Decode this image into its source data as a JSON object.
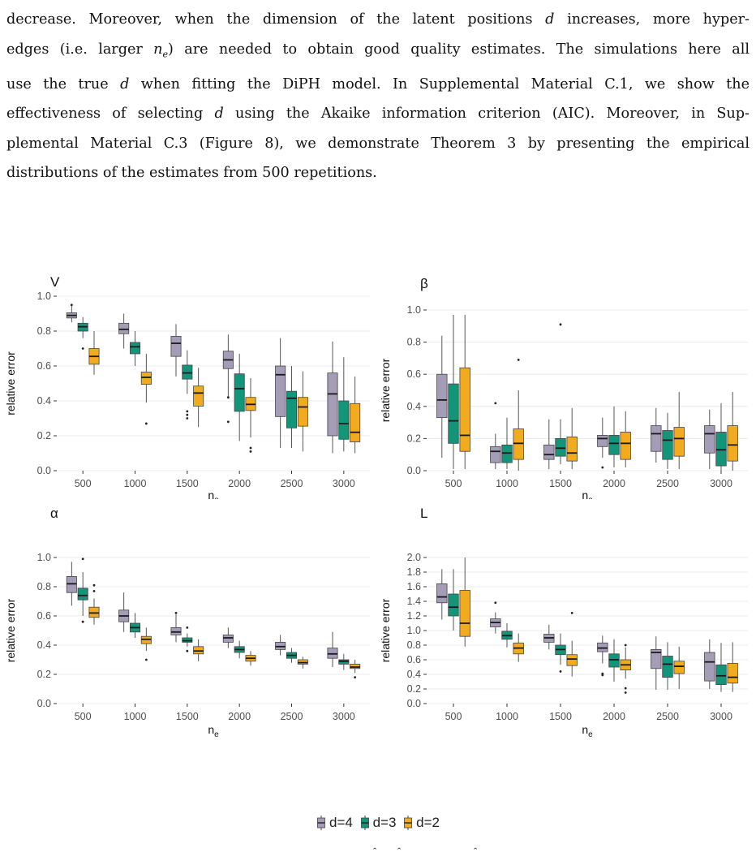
{
  "paragraph": {
    "lines": [
      "decrease. Moreover, when the dimension of the latent positions d increases, more hyper-",
      "edges (i.e. larger n_e) are needed to obtain good quality estimates. The simulations here all",
      "use the true d when fitting the DiPH model. In Supplemental Material C.1, we show the",
      "effectiveness of selecting d using the Akaike information criterion (AIC). Moreover, in Sup-",
      "plemental Material C.3 (Figure 8), we demonstrate Theorem 3 by presenting the empirical",
      "distributions of the estimates from 500 repetitions."
    ]
  },
  "legend": {
    "items": [
      {
        "label": "d=4",
        "color": "#a59cb8"
      },
      {
        "label": "d=3",
        "color": "#13957a"
      },
      {
        "label": "d=2",
        "color": "#f2aa1f"
      }
    ]
  },
  "chart_data": [
    {
      "type": "box",
      "title": "V",
      "xlabel": "n_e",
      "ylabel": "relative error",
      "categories": [
        "500",
        "1000",
        "1500",
        "2000",
        "2500",
        "3000"
      ],
      "ylim": [
        0,
        1.0
      ],
      "yticks": [
        "0.0",
        "0.2",
        "0.4",
        "0.6",
        "0.8",
        "1.0"
      ],
      "ytick_values": [
        0,
        0.2,
        0.4,
        0.6,
        0.8,
        1.0
      ],
      "series": [
        {
          "name": "d=4",
          "boxes": [
            [
              0.85,
              0.875,
              0.89,
              0.905,
              0.95
            ],
            [
              0.7,
              0.785,
              0.81,
              0.845,
              0.9
            ],
            [
              0.54,
              0.655,
              0.73,
              0.77,
              0.84
            ],
            [
              0.42,
              0.585,
              0.635,
              0.685,
              0.78
            ],
            [
              0.13,
              0.31,
              0.55,
              0.6,
              0.76
            ],
            [
              0.1,
              0.2,
              0.44,
              0.56,
              0.74
            ]
          ],
          "outliers": [
            [
              0.95
            ],
            [],
            [],
            [
              0.28,
              0.42
            ],
            [],
            []
          ]
        },
        {
          "name": "d=3",
          "boxes": [
            [
              0.76,
              0.8,
              0.825,
              0.845,
              0.88
            ],
            [
              0.6,
              0.67,
              0.71,
              0.735,
              0.8
            ],
            [
              0.44,
              0.525,
              0.56,
              0.605,
              0.69
            ],
            [
              0.17,
              0.34,
              0.47,
              0.555,
              0.67
            ],
            [
              0.13,
              0.245,
              0.415,
              0.455,
              0.6
            ],
            [
              0.11,
              0.18,
              0.27,
              0.4,
              0.65
            ]
          ],
          "outliers": [
            [
              0.7
            ],
            [],
            [
              0.3,
              0.32,
              0.34
            ],
            [],
            [],
            []
          ]
        },
        {
          "name": "d=2",
          "boxes": [
            [
              0.55,
              0.61,
              0.655,
              0.7,
              0.8
            ],
            [
              0.39,
              0.495,
              0.535,
              0.565,
              0.67
            ],
            [
              0.25,
              0.37,
              0.445,
              0.485,
              0.59
            ],
            [
              0.19,
              0.345,
              0.38,
              0.42,
              0.53
            ],
            [
              0.11,
              0.255,
              0.365,
              0.42,
              0.57
            ],
            [
              0.1,
              0.165,
              0.22,
              0.385,
              0.54
            ]
          ],
          "outliers": [
            [],
            [
              0.27
            ],
            [],
            [
              0.11,
              0.13
            ],
            [],
            []
          ]
        }
      ]
    },
    {
      "type": "box",
      "title": "β",
      "xlabel": "n_e",
      "ylabel": "relative error",
      "categories": [
        "500",
        "1000",
        "1500",
        "2000",
        "2500",
        "3000"
      ],
      "ylim": [
        0,
        1.0
      ],
      "yticks": [
        "0.0",
        "0.2",
        "0.4",
        "0.6",
        "0.8",
        "1.0"
      ],
      "ytick_values": [
        0,
        0.2,
        0.4,
        0.6,
        0.8,
        1.0
      ],
      "series": [
        {
          "name": "d=4",
          "boxes": [
            [
              0.08,
              0.33,
              0.44,
              0.6,
              0.84
            ],
            [
              0.01,
              0.05,
              0.12,
              0.15,
              0.23
            ],
            [
              0.01,
              0.07,
              0.1,
              0.16,
              0.32
            ],
            [
              0.08,
              0.15,
              0.2,
              0.22,
              0.33
            ],
            [
              0.05,
              0.12,
              0.23,
              0.28,
              0.39
            ],
            [
              0.01,
              0.11,
              0.23,
              0.28,
              0.38
            ]
          ],
          "outliers": [
            [],
            [
              0.42
            ],
            [],
            [
              0.02
            ],
            [],
            []
          ]
        },
        {
          "name": "d=3",
          "boxes": [
            [
              0.01,
              0.17,
              0.31,
              0.54,
              0.97
            ],
            [
              0.01,
              0.05,
              0.11,
              0.16,
              0.33
            ],
            [
              0.04,
              0.09,
              0.14,
              0.2,
              0.32
            ],
            [
              0.02,
              0.1,
              0.17,
              0.22,
              0.4
            ],
            [
              0.01,
              0.07,
              0.19,
              0.25,
              0.36
            ],
            [
              0.0,
              0.03,
              0.13,
              0.24,
              0.42
            ]
          ],
          "outliers": [
            [],
            [],
            [
              0.91
            ],
            [],
            [],
            []
          ]
        },
        {
          "name": "d=2",
          "boxes": [
            [
              0.01,
              0.12,
              0.22,
              0.64,
              0.97
            ],
            [
              0.0,
              0.07,
              0.17,
              0.26,
              0.5
            ],
            [
              0.01,
              0.06,
              0.11,
              0.21,
              0.39
            ],
            [
              0.02,
              0.07,
              0.17,
              0.24,
              0.37
            ],
            [
              0.01,
              0.09,
              0.2,
              0.27,
              0.49
            ],
            [
              0.0,
              0.06,
              0.16,
              0.28,
              0.49
            ]
          ],
          "outliers": [
            [],
            [
              0.69
            ],
            [],
            [],
            [],
            []
          ]
        }
      ]
    },
    {
      "type": "box",
      "title": "α",
      "xlabel": "n_e",
      "ylabel": "relative error",
      "categories": [
        "500",
        "1000",
        "1500",
        "2000",
        "2500",
        "3000"
      ],
      "ylim": [
        0,
        1.0
      ],
      "yticks": [
        "0.0",
        "0.2",
        "0.4",
        "0.6",
        "0.8",
        "1.0"
      ],
      "ytick_values": [
        0,
        0.2,
        0.4,
        0.6,
        0.8,
        1.0
      ],
      "series": [
        {
          "name": "d=4",
          "boxes": [
            [
              0.67,
              0.76,
              0.82,
              0.87,
              0.97
            ],
            [
              0.49,
              0.56,
              0.6,
              0.64,
              0.76
            ],
            [
              0.42,
              0.47,
              0.49,
              0.52,
              0.61
            ],
            [
              0.38,
              0.42,
              0.45,
              0.47,
              0.52
            ],
            [
              0.33,
              0.37,
              0.39,
              0.42,
              0.47
            ],
            [
              0.25,
              0.31,
              0.34,
              0.38,
              0.49
            ]
          ],
          "outliers": [
            [],
            [],
            [
              0.62
            ],
            [],
            [],
            []
          ]
        },
        {
          "name": "d=3",
          "boxes": [
            [
              0.6,
              0.71,
              0.74,
              0.79,
              0.9
            ],
            [
              0.45,
              0.49,
              0.52,
              0.55,
              0.62
            ],
            [
              0.39,
              0.42,
              0.43,
              0.45,
              0.48
            ],
            [
              0.31,
              0.35,
              0.37,
              0.39,
              0.43
            ],
            [
              0.28,
              0.31,
              0.33,
              0.35,
              0.38
            ],
            [
              0.23,
              0.27,
              0.29,
              0.3,
              0.34
            ]
          ],
          "outliers": [
            [
              0.56,
              0.99
            ],
            [],
            [
              0.36,
              0.52
            ],
            [],
            [],
            []
          ]
        },
        {
          "name": "d=2",
          "boxes": [
            [
              0.54,
              0.59,
              0.62,
              0.66,
              0.72
            ],
            [
              0.36,
              0.41,
              0.44,
              0.46,
              0.52
            ],
            [
              0.29,
              0.34,
              0.36,
              0.39,
              0.44
            ],
            [
              0.26,
              0.29,
              0.31,
              0.33,
              0.36
            ],
            [
              0.24,
              0.27,
              0.28,
              0.3,
              0.32
            ],
            [
              0.21,
              0.24,
              0.25,
              0.27,
              0.3
            ]
          ],
          "outliers": [
            [
              0.77,
              0.81
            ],
            [
              0.3
            ],
            [],
            [],
            [],
            [
              0.18
            ]
          ]
        }
      ]
    },
    {
      "type": "box",
      "title": "L",
      "xlabel": "n_e",
      "ylabel": "relative error",
      "categories": [
        "500",
        "1000",
        "1500",
        "2000",
        "2500",
        "3000"
      ],
      "ylim": [
        0,
        2.0
      ],
      "yticks": [
        "0.0",
        "0.2",
        "0.4",
        "0.6",
        "0.8",
        "1.0",
        "1.2",
        "1.4",
        "1.6",
        "1.8",
        "2.0"
      ],
      "ytick_values": [
        0,
        0.2,
        0.4,
        0.6,
        0.8,
        1.0,
        1.2,
        1.4,
        1.6,
        1.8,
        2.0
      ],
      "series": [
        {
          "name": "d=4",
          "boxes": [
            [
              1.15,
              1.38,
              1.46,
              1.64,
              1.84
            ],
            [
              0.96,
              1.05,
              1.11,
              1.16,
              1.25
            ],
            [
              0.74,
              0.84,
              0.9,
              0.95,
              1.08
            ],
            [
              0.55,
              0.71,
              0.76,
              0.83,
              0.93
            ],
            [
              0.19,
              0.48,
              0.7,
              0.74,
              0.92
            ],
            [
              0.2,
              0.31,
              0.57,
              0.7,
              0.88
            ]
          ],
          "outliers": [
            [],
            [
              1.38
            ],
            [],
            [
              0.39,
              0.41
            ],
            [],
            []
          ]
        },
        {
          "name": "d=3",
          "boxes": [
            [
              1.0,
              1.2,
              1.32,
              1.5,
              1.84
            ],
            [
              0.77,
              0.88,
              0.93,
              0.99,
              1.1
            ],
            [
              0.53,
              0.67,
              0.74,
              0.8,
              0.96
            ],
            [
              0.3,
              0.5,
              0.6,
              0.68,
              0.88
            ],
            [
              0.19,
              0.36,
              0.54,
              0.65,
              0.84
            ],
            [
              0.16,
              0.26,
              0.38,
              0.53,
              0.83
            ]
          ],
          "outliers": [
            [],
            [],
            [
              0.44
            ],
            [],
            [],
            []
          ]
        },
        {
          "name": "d=2",
          "boxes": [
            [
              0.78,
              0.92,
              1.1,
              1.55,
              2.0
            ],
            [
              0.57,
              0.68,
              0.76,
              0.83,
              0.96
            ],
            [
              0.37,
              0.52,
              0.61,
              0.67,
              0.86
            ],
            [
              0.34,
              0.46,
              0.53,
              0.6,
              0.77
            ],
            [
              0.2,
              0.41,
              0.51,
              0.58,
              0.78
            ],
            [
              0.16,
              0.28,
              0.36,
              0.55,
              0.84
            ]
          ],
          "outliers": [
            [],
            [],
            [
              1.24
            ],
            [
              0.15,
              0.21,
              0.8
            ],
            [],
            []
          ]
        }
      ]
    }
  ]
}
